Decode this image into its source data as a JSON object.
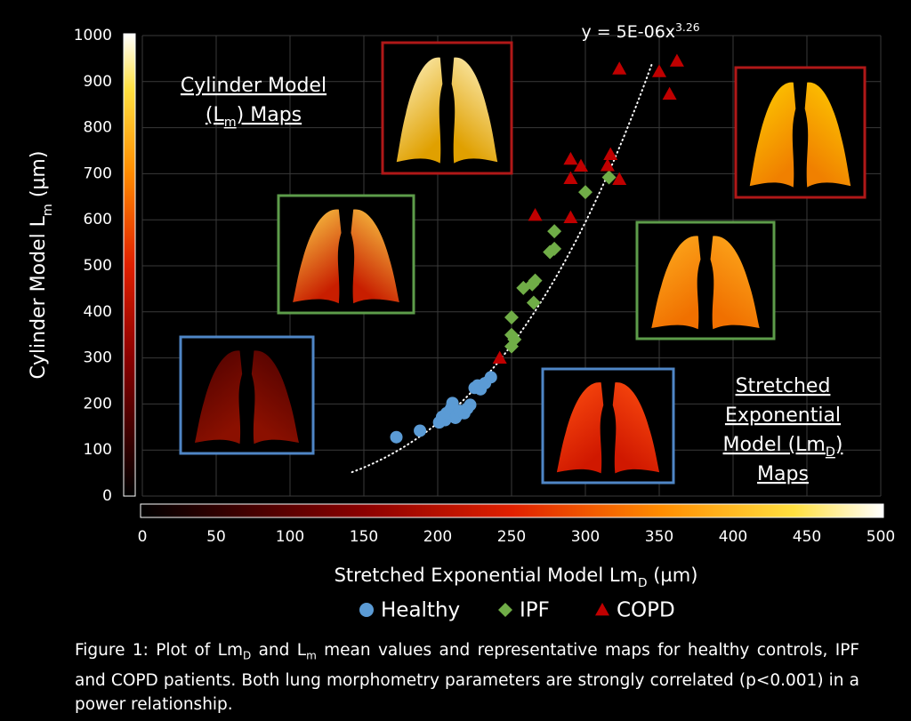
{
  "chart_data": {
    "type": "scatter",
    "x_label": [
      "Stretched Exponential Model Lm",
      "D",
      " (µm)"
    ],
    "y_label": [
      "Cylinder Model L",
      "m",
      " (µm)"
    ],
    "xlim": [
      0,
      500
    ],
    "ylim": [
      0,
      1000
    ],
    "xticks": [
      0,
      50,
      100,
      150,
      200,
      250,
      300,
      350,
      400,
      450,
      500
    ],
    "yticks": [
      0,
      100,
      200,
      300,
      400,
      500,
      600,
      700,
      800,
      900,
      1000
    ],
    "grid": true,
    "legend": "bottom",
    "series": [
      {
        "name": "Healthy",
        "marker": "circle",
        "color": "#5b9bd5",
        "x": [
          172,
          188,
          201,
          203,
          205,
          206,
          209,
          210,
          212,
          213,
          215,
          218,
          220,
          222,
          225,
          227,
          229,
          232,
          236
        ],
        "y": [
          128,
          142,
          160,
          172,
          165,
          180,
          190,
          202,
          170,
          175,
          185,
          180,
          190,
          198,
          235,
          240,
          232,
          245,
          258
        ]
      },
      {
        "name": "IPF",
        "marker": "diamond",
        "color": "#70ad47",
        "x": [
          250,
          252,
          250,
          250,
          258,
          264,
          266,
          265,
          276,
          279,
          279,
          300,
          316
        ],
        "y": [
          325,
          340,
          350,
          388,
          452,
          460,
          468,
          420,
          530,
          537,
          575,
          660,
          692
        ]
      },
      {
        "name": "COPD",
        "marker": "triangle",
        "color": "#c00000",
        "x": [
          242,
          266,
          290,
          290,
          297,
          290,
          315,
          317,
          323,
          323,
          350,
          357,
          362
        ],
        "y": [
          300,
          610,
          732,
          690,
          717,
          605,
          718,
          742,
          688,
          928,
          922,
          873,
          945
        ]
      }
    ],
    "trend": {
      "label": [
        "y = 5E-06x",
        "3.26"
      ],
      "a": 5e-06,
      "b": 3.26,
      "x_range": [
        142,
        345
      ]
    },
    "annotations": [
      {
        "lines": [
          [
            "Cylinder Model"
          ],
          [
            "(L",
            "m",
            ") Maps"
          ]
        ]
      },
      {
        "lines": [
          [
            "Stretched"
          ],
          [
            "Exponential"
          ],
          [
            "Model (Lm",
            "D",
            ")"
          ],
          [
            "Maps"
          ]
        ]
      }
    ]
  },
  "caption": [
    "Figure 1: Plot of Lm",
    "D",
    " and L",
    "m",
    " mean values and representative maps for healthy controls, IPF and COPD patients. Both lung morphometry parameters are strongly correlated (p<0.001) in a power relationship."
  ]
}
